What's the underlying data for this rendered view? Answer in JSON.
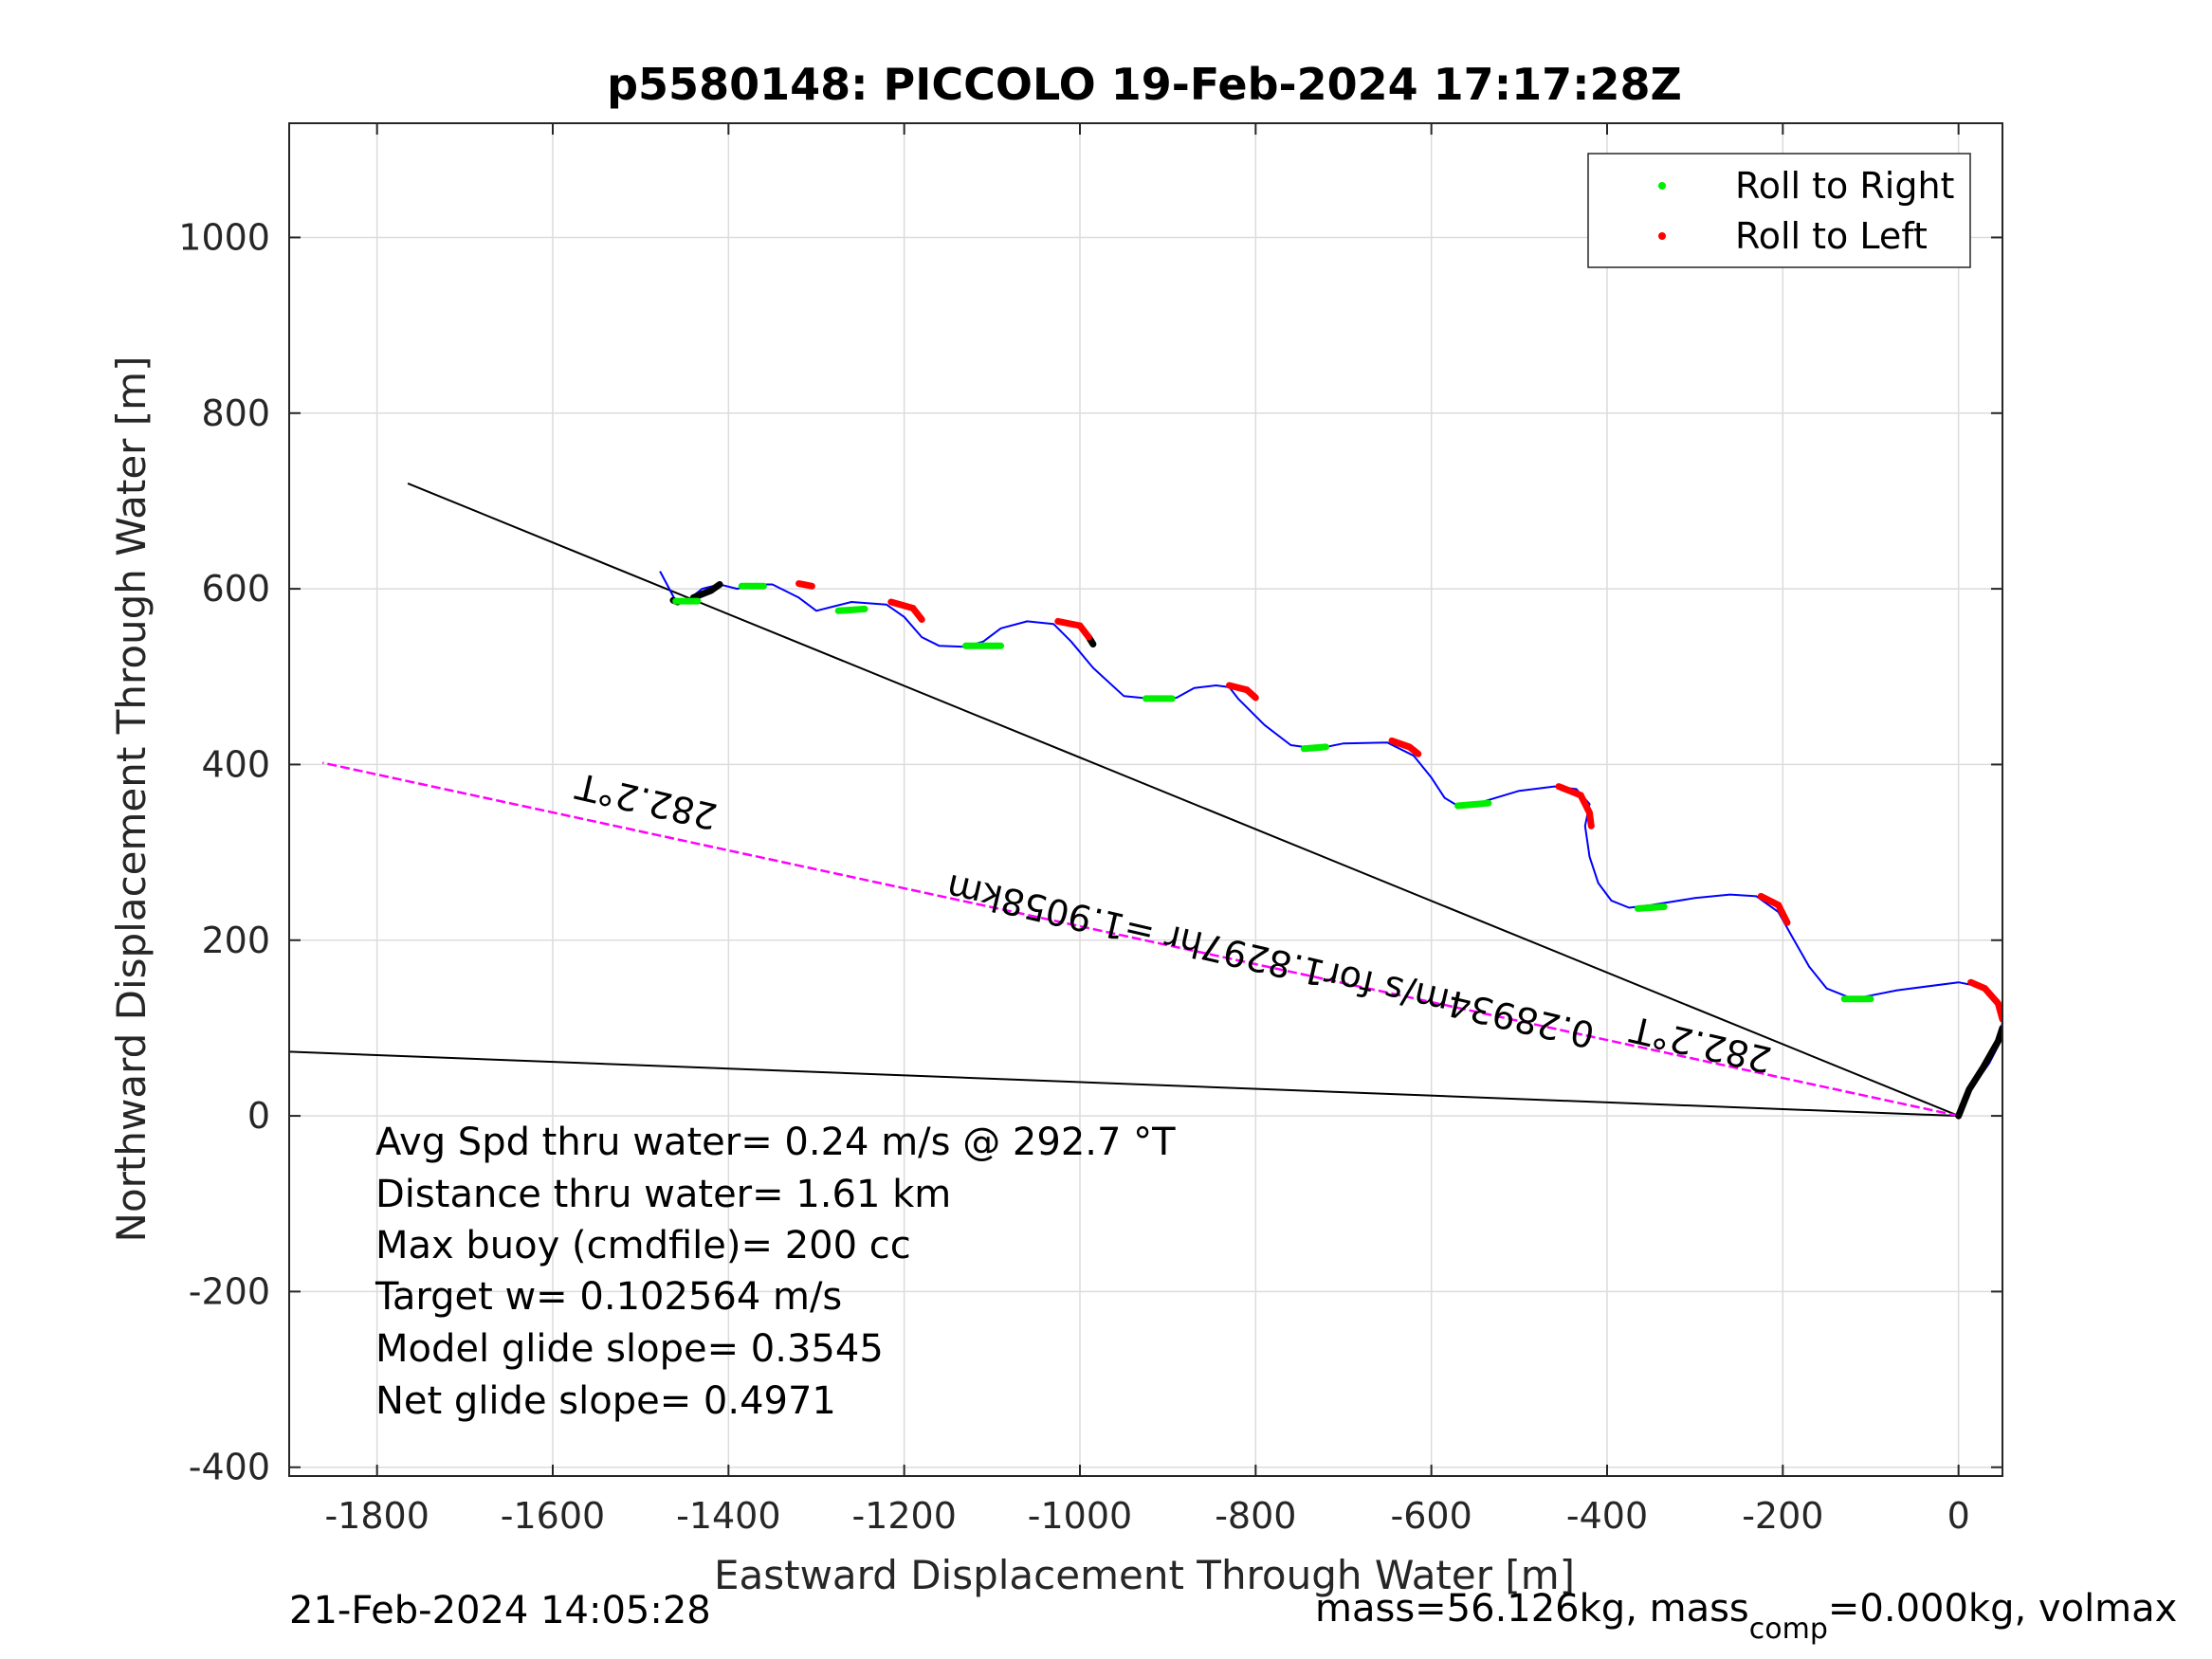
{
  "chart_data": {
    "type": "line",
    "title": "p5580148: PICCOLO 19-Feb-2024 17:17:28Z",
    "xlabel": "Eastward Displacement Through Water [m]",
    "ylabel": "Northward Displacement Through Water [m]",
    "xlim": [
      -1900,
      50
    ],
    "ylim": [
      -410,
      1130
    ],
    "xticks": [
      -1800,
      -1600,
      -1400,
      -1200,
      -1000,
      -800,
      -600,
      -400,
      -200,
      0
    ],
    "yticks": [
      -400,
      -200,
      0,
      200,
      400,
      600,
      800,
      1000
    ],
    "grid": true,
    "legend": {
      "position": "top-right",
      "entries": [
        {
          "label": "Roll to Right",
          "color": "#00ee00"
        },
        {
          "label": "Roll to Left",
          "color": "#ff0000"
        }
      ]
    },
    "track": {
      "color": "#0000ff",
      "x": [
        0,
        14,
        35,
        48,
        50,
        44,
        38,
        20,
        0,
        -70,
        -120,
        -150,
        -170,
        -190,
        -205,
        -230,
        -260,
        -300,
        -350,
        -375,
        -395,
        -410,
        -420,
        -425,
        -420,
        -435,
        -460,
        -500,
        -550,
        -570,
        -585,
        -600,
        -620,
        -650,
        -700,
        -730,
        -760,
        -790,
        -820,
        -830,
        -845,
        -870,
        -890,
        -910,
        -950,
        -985,
        -1010,
        -1030,
        -1060,
        -1090,
        -1110,
        -1130,
        -1160,
        -1180,
        -1200,
        -1220,
        -1260,
        -1280,
        -1300,
        -1320,
        -1350,
        -1370,
        -1390,
        -1410,
        -1430,
        -1445,
        -1460,
        -1470,
        -1478
      ],
      "y": [
        0,
        30,
        60,
        85,
        110,
        130,
        138,
        148,
        152,
        143,
        133,
        145,
        170,
        205,
        232,
        250,
        252,
        248,
        240,
        237,
        245,
        265,
        295,
        330,
        355,
        372,
        375,
        370,
        355,
        353,
        362,
        385,
        410,
        425,
        424,
        418,
        422,
        445,
        475,
        488,
        490,
        487,
        476,
        474,
        478,
        510,
        540,
        560,
        563,
        555,
        540,
        534,
        535,
        545,
        568,
        582,
        585,
        580,
        575,
        590,
        605,
        605,
        600,
        605,
        600,
        588,
        586,
        605,
        620
      ]
    },
    "roll_right_segments": [
      {
        "x": [
          -130,
          -100
        ],
        "y": [
          133,
          133
        ]
      },
      {
        "x": [
          -365,
          -335
        ],
        "y": [
          236,
          238
        ]
      },
      {
        "x": [
          -570,
          -535
        ],
        "y": [
          353,
          356
        ]
      },
      {
        "x": [
          -745,
          -720
        ],
        "y": [
          418,
          420
        ]
      },
      {
        "x": [
          -925,
          -895
        ],
        "y": [
          475,
          475
        ]
      },
      {
        "x": [
          -1130,
          -1090
        ],
        "y": [
          535,
          535
        ]
      },
      {
        "x": [
          -1275,
          -1245
        ],
        "y": [
          575,
          577
        ]
      },
      {
        "x": [
          -1385,
          -1360
        ],
        "y": [
          603,
          603
        ]
      },
      {
        "x": [
          -1460,
          -1435
        ],
        "y": [
          586,
          586
        ]
      }
    ],
    "roll_left_segments": [
      {
        "x": [
          14,
          30,
          45,
          50
        ],
        "y": [
          152,
          145,
          128,
          110
        ]
      },
      {
        "x": [
          -225,
          -205,
          -195
        ],
        "y": [
          250,
          240,
          220
        ]
      },
      {
        "x": [
          -455,
          -430,
          -420,
          -418
        ],
        "y": [
          375,
          365,
          345,
          330
        ]
      },
      {
        "x": [
          -645,
          -625,
          -615
        ],
        "y": [
          427,
          420,
          412
        ]
      },
      {
        "x": [
          -830,
          -810,
          -800
        ],
        "y": [
          490,
          485,
          476
        ]
      },
      {
        "x": [
          -1025,
          -1000,
          -990
        ],
        "y": [
          563,
          558,
          545
        ]
      },
      {
        "x": [
          -1215,
          -1190,
          -1180
        ],
        "y": [
          585,
          578,
          565
        ]
      },
      {
        "x": [
          -1320,
          -1305
        ],
        "y": [
          606,
          603
        ]
      }
    ],
    "dive_segments": [
      {
        "x": [
          0,
          12,
          28,
          45,
          50
        ],
        "y": [
          0,
          30,
          55,
          85,
          100
        ]
      },
      {
        "x": [
          -1440,
          -1420,
          -1410
        ],
        "y": [
          590,
          598,
          605
        ]
      },
      {
        "x": [
          -1463,
          -1458
        ],
        "y": [
          587,
          585
        ]
      },
      {
        "x": [
          -990,
          -985
        ],
        "y": [
          545,
          537
        ]
      }
    ],
    "reference_lines": [
      {
        "color": "#000000",
        "x": [
          0,
          -1765
        ],
        "y": [
          0,
          720
        ]
      },
      {
        "color": "#000000",
        "x": [
          0,
          -1900
        ],
        "y": [
          0,
          73
        ]
      },
      {
        "color": "#ff00ff",
        "x": [
          0,
          -1862
        ],
        "y": [
          0,
          402
        ]
      }
    ],
    "annotations": [
      {
        "text": "282.2°T",
        "x": -1490,
        "y": 372,
        "angle": 193
      },
      {
        "text": "282.2°T",
        "x": -290,
        "y": 95,
        "angle": 193
      },
      {
        "text": "0.28934m/s for1.8297hr =1.9058km",
        "x": -780,
        "y": 190,
        "angle": 193
      }
    ]
  },
  "stats": [
    "Avg Spd thru water=  0.24 m/s @ 292.7 °T",
    "Distance thru water=  1.61 km",
    "Max buoy (cmdfile)= 200 cc",
    "Target w= 0.102564 m/s",
    "Model glide slope= 0.3545",
    "Net glide slope= 0.4971"
  ],
  "footer": {
    "timestamp": "21-Feb-2024 14:05:28",
    "mass_pre": "mass=56.126kg, mass",
    "mass_sub": "comp",
    "mass_post": "=0.000kg, volmax"
  }
}
